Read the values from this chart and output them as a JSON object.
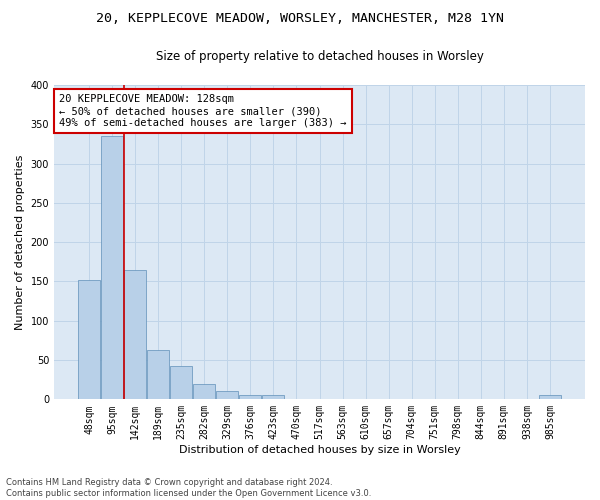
{
  "title_line1": "20, KEPPLECOVE MEADOW, WORSLEY, MANCHESTER, M28 1YN",
  "title_line2": "Size of property relative to detached houses in Worsley",
  "xlabel": "Distribution of detached houses by size in Worsley",
  "ylabel": "Number of detached properties",
  "categories": [
    "48sqm",
    "95sqm",
    "142sqm",
    "189sqm",
    "235sqm",
    "282sqm",
    "329sqm",
    "376sqm",
    "423sqm",
    "470sqm",
    "517sqm",
    "563sqm",
    "610sqm",
    "657sqm",
    "704sqm",
    "751sqm",
    "798sqm",
    "844sqm",
    "891sqm",
    "938sqm",
    "985sqm"
  ],
  "values": [
    152,
    335,
    165,
    63,
    43,
    20,
    11,
    5,
    5,
    0,
    0,
    0,
    0,
    0,
    0,
    0,
    0,
    0,
    0,
    0,
    5
  ],
  "bar_color": "#b8d0e8",
  "bar_edge_color": "#6090b8",
  "vline_index": 1.5,
  "vline_color": "#cc0000",
  "annotation_text": "20 KEPPLECOVE MEADOW: 128sqm\n← 50% of detached houses are smaller (390)\n49% of semi-detached houses are larger (383) →",
  "annotation_box_color": "#ffffff",
  "annotation_box_edge": "#cc0000",
  "ylim": [
    0,
    400
  ],
  "yticks": [
    0,
    50,
    100,
    150,
    200,
    250,
    300,
    350,
    400
  ],
  "grid_color": "#c0d4e8",
  "background_color": "#dce8f4",
  "footer_text": "Contains HM Land Registry data © Crown copyright and database right 2024.\nContains public sector information licensed under the Open Government Licence v3.0.",
  "title_fontsize": 9.5,
  "subtitle_fontsize": 8.5,
  "axis_label_fontsize": 8,
  "tick_fontsize": 7,
  "annotation_fontsize": 7.5
}
